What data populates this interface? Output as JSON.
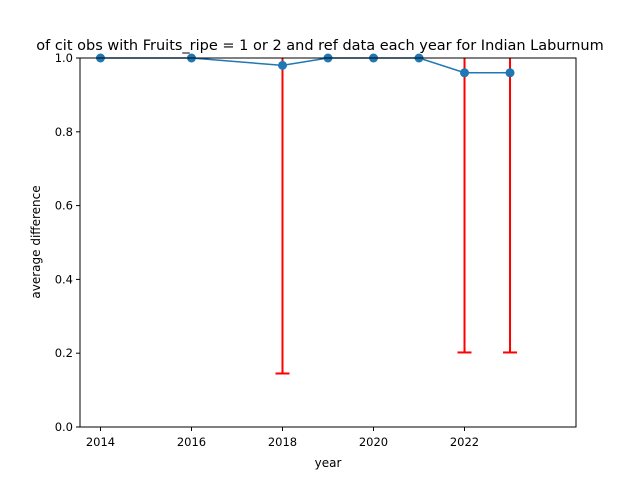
{
  "chart_data": {
    "type": "line",
    "title": "of cit obs with Fruits_ripe = 1 or 2 and ref data each year for Indian Laburnum",
    "xlabel": "year",
    "ylabel": "average difference",
    "xlim": [
      2013.55,
      2024.45
    ],
    "ylim": [
      0.0,
      1.0
    ],
    "x_ticks": [
      2014,
      2016,
      2018,
      2020,
      2022
    ],
    "y_ticks": [
      "0.0",
      "0.2",
      "0.4",
      "0.6",
      "0.8",
      "1.0"
    ],
    "grid": false,
    "series": [
      {
        "x": [
          2014,
          2016,
          2018,
          2019,
          2020,
          2021,
          2022,
          2023
        ],
        "values": [
          1.0,
          1.0,
          0.98,
          1.0,
          1.0,
          1.0,
          0.96,
          0.96
        ],
        "error_lower": [
          0.0,
          0.0,
          0.835,
          0.0,
          0.0,
          0.0,
          0.758,
          0.758
        ],
        "error_upper": [
          0.0,
          0.0,
          1.0,
          0.0,
          0.0,
          0.0,
          1.0,
          1.0
        ],
        "color": "#1f77b4",
        "error_color": "#ff0000",
        "marker": "circle"
      }
    ]
  }
}
